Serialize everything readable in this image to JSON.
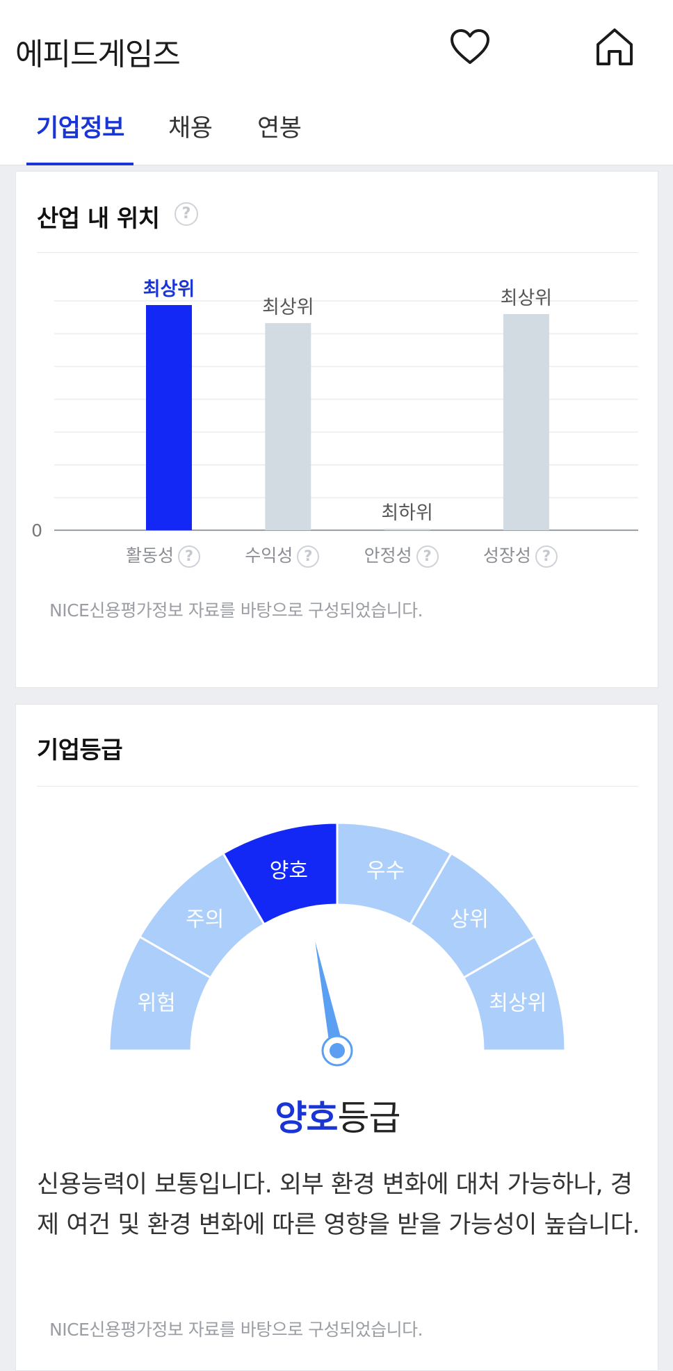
{
  "header": {
    "company_name": "에피드게임즈",
    "tabs": [
      {
        "label": "기업정보",
        "active": true
      },
      {
        "label": "채용",
        "active": false
      },
      {
        "label": "연봉",
        "active": false
      }
    ]
  },
  "industry_position": {
    "title": "산업 내 위치",
    "help": "?",
    "zero_label": "0",
    "source": "NICE신용평가정보 자료를 바탕으로 구성되었습니다.",
    "chart_data": {
      "type": "bar",
      "categories": [
        "활동성",
        "수익성",
        "안정성",
        "성장성"
      ],
      "value_labels": [
        "최상위",
        "최상위",
        "최하위",
        "최상위"
      ],
      "values": [
        1.0,
        0.92,
        0.005,
        0.96
      ],
      "highlight_index": 0,
      "colors": {
        "highlight": "#1328f5",
        "normal": "#d2dbe2",
        "highlight_label": "#1a35d6"
      },
      "ylim": [
        0,
        1
      ]
    }
  },
  "company_grade": {
    "title": "기업등급",
    "segments": [
      "위험",
      "주의",
      "양호",
      "우수",
      "상위",
      "최상위"
    ],
    "selected_index": 2,
    "colors": {
      "active": "#1328f5",
      "inactive": "#abcffa",
      "needle": "#5a9ff2"
    },
    "grade_name": "양호",
    "grade_suffix": "등급",
    "description": "신용능력이 보통입니다. 외부 환경 변화에 대처 가능하나, 경제 여건 및 환경 변화에 따른 영향을 받을 가능성이 높습니다.",
    "source": "NICE신용평가정보 자료를 바탕으로 구성되었습니다."
  }
}
